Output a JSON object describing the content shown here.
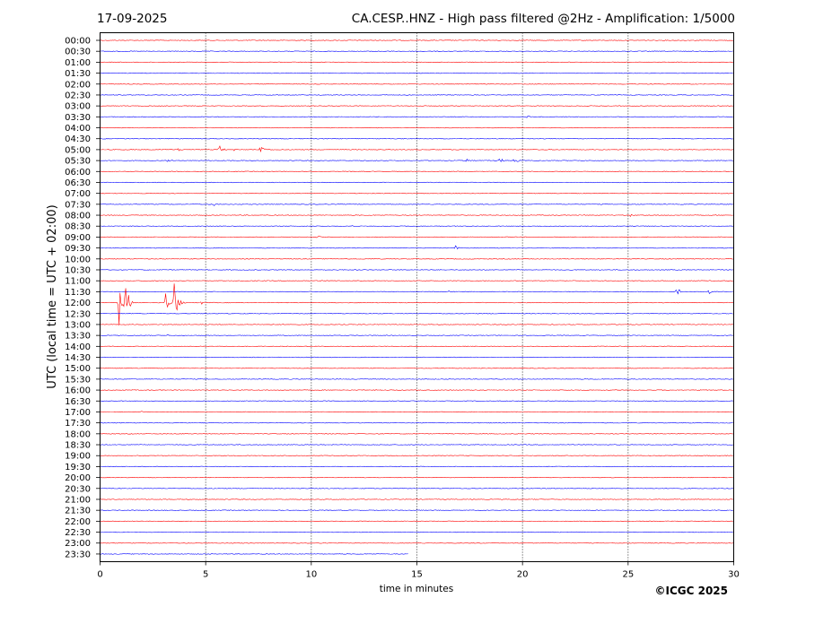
{
  "chart_data": {
    "type": "line",
    "chart_style": "seismic helicorder (one trace per 30-minute row, alternating colors)",
    "date": "17-09-2025",
    "title": "CA.CESP..HNZ - High pass filtered @2Hz - Amplification: 1/5000",
    "xlabel": "time in minutes",
    "ylabel": "UTC (local time = UTC + 02:00)",
    "copyright": "©ICGC 2025",
    "xlim": [
      0,
      30
    ],
    "x_ticks": [
      0,
      5,
      10,
      15,
      20,
      25,
      30
    ],
    "x_tick_labels": [
      "0",
      "5",
      "10",
      "15",
      "20",
      "25",
      "30"
    ],
    "vertical_gridlines": [
      5,
      10,
      15,
      20,
      25
    ],
    "grid": "dotted vertical lines only",
    "row_labels": [
      "00:00",
      "00:30",
      "01:00",
      "01:30",
      "02:00",
      "02:30",
      "03:00",
      "03:30",
      "04:00",
      "04:30",
      "05:00",
      "05:30",
      "06:00",
      "06:30",
      "07:00",
      "07:30",
      "08:00",
      "08:30",
      "09:00",
      "09:30",
      "10:00",
      "10:30",
      "11:00",
      "11:30",
      "12:00",
      "12:30",
      "13:00",
      "13:30",
      "14:00",
      "14:30",
      "15:00",
      "15:30",
      "16:00",
      "16:30",
      "17:00",
      "17:30",
      "18:00",
      "18:30",
      "19:00",
      "19:30",
      "20:00",
      "20:30",
      "21:00",
      "21:30",
      "22:00",
      "22:30",
      "23:00",
      "23:30"
    ],
    "trace_colors": [
      "#ff0000",
      "#0000ff"
    ],
    "last_row_end_minute": 14.6,
    "events": [
      {
        "row": 7,
        "minute": 20.2,
        "amp": 0.12
      },
      {
        "row": 10,
        "minute": 3.7,
        "amp": 0.15
      },
      {
        "row": 10,
        "minute": 5.6,
        "amp": 0.55
      },
      {
        "row": 10,
        "minute": 6.3,
        "amp": 0.12
      },
      {
        "row": 10,
        "minute": 7.6,
        "amp": 0.75
      },
      {
        "row": 11,
        "minute": 3.2,
        "amp": 0.08
      },
      {
        "row": 11,
        "minute": 17.3,
        "amp": 0.3
      },
      {
        "row": 11,
        "minute": 18.9,
        "amp": 0.35
      },
      {
        "row": 11,
        "minute": 19.6,
        "amp": 0.35
      },
      {
        "row": 15,
        "minute": 5.4,
        "amp": 0.22
      },
      {
        "row": 16,
        "minute": 25.1,
        "amp": 0.15
      },
      {
        "row": 17,
        "minute": 11.9,
        "amp": 0.1
      },
      {
        "row": 17,
        "minute": 16.6,
        "amp": 0.08
      },
      {
        "row": 18,
        "minute": 10.3,
        "amp": 0.3
      },
      {
        "row": 19,
        "minute": 16.8,
        "amp": 0.35
      },
      {
        "row": 23,
        "minute": 16.5,
        "amp": 0.1
      },
      {
        "row": 23,
        "minute": 18.0,
        "amp": 0.05
      },
      {
        "row": 23,
        "minute": 27.3,
        "amp": 0.5
      },
      {
        "row": 23,
        "minute": 28.8,
        "amp": 0.25
      },
      {
        "row": 24,
        "minute": 0.9,
        "amp": 2.5
      },
      {
        "row": 24,
        "minute": 1.2,
        "amp": 2.8
      },
      {
        "row": 24,
        "minute": 3.1,
        "amp": 1.5
      },
      {
        "row": 24,
        "minute": 3.5,
        "amp": 2.6
      },
      {
        "row": 24,
        "minute": 4.8,
        "amp": 0.15
      },
      {
        "row": 27,
        "minute": 3.2,
        "amp": 0.1
      },
      {
        "row": 32,
        "minute": 28.3,
        "amp": 0.1
      },
      {
        "row": 34,
        "minute": 1.9,
        "amp": 0.08
      },
      {
        "row": 35,
        "minute": 10.3,
        "amp": 0.06
      }
    ]
  }
}
